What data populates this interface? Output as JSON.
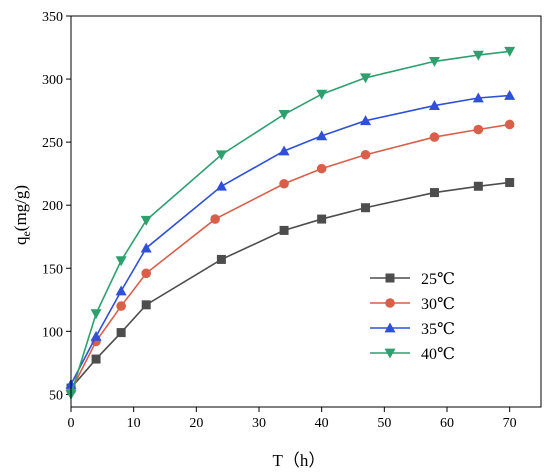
{
  "chart_data": {
    "type": "line",
    "title": "",
    "xlabel": "T（h）",
    "ylabel_main": "q",
    "ylabel_sub": "e",
    "ylabel_rest": "(mg/g)",
    "xlim": [
      0,
      75
    ],
    "ylim": [
      40,
      350
    ],
    "xticks": [
      0,
      10,
      20,
      30,
      40,
      50,
      60,
      70
    ],
    "yticks": [
      50,
      100,
      150,
      200,
      250,
      300,
      350
    ],
    "grid": false,
    "legend_position": "lower-right",
    "series": [
      {
        "name": "25℃",
        "color": "#4d4d4d",
        "marker": "square",
        "x": [
          0,
          4,
          8,
          12,
          24,
          34,
          40,
          47,
          58,
          65,
          70
        ],
        "y": [
          55,
          78,
          99,
          121,
          157,
          180,
          189,
          198,
          210,
          215,
          218
        ]
      },
      {
        "name": "30℃",
        "color": "#d95f4b",
        "marker": "circle",
        "x": [
          0,
          4,
          8,
          12,
          23,
          34,
          40,
          47,
          58,
          65,
          70
        ],
        "y": [
          53,
          92,
          120,
          146,
          189,
          217,
          229,
          240,
          254,
          260,
          264
        ]
      },
      {
        "name": "35℃",
        "color": "#2f50d8",
        "marker": "triangle-up",
        "x": [
          0,
          4,
          8,
          12,
          24,
          34,
          40,
          47,
          58,
          65,
          70
        ],
        "y": [
          58,
          96,
          132,
          166,
          215,
          243,
          255,
          267,
          279,
          285,
          287
        ]
      },
      {
        "name": "40℃",
        "color": "#2ea06e",
        "marker": "triangle-down",
        "x": [
          0,
          4,
          8,
          12,
          24,
          34,
          40,
          47,
          58,
          65,
          70
        ],
        "y": [
          50,
          114,
          156,
          188,
          240,
          272,
          288,
          301,
          314,
          319,
          322
        ]
      }
    ]
  }
}
